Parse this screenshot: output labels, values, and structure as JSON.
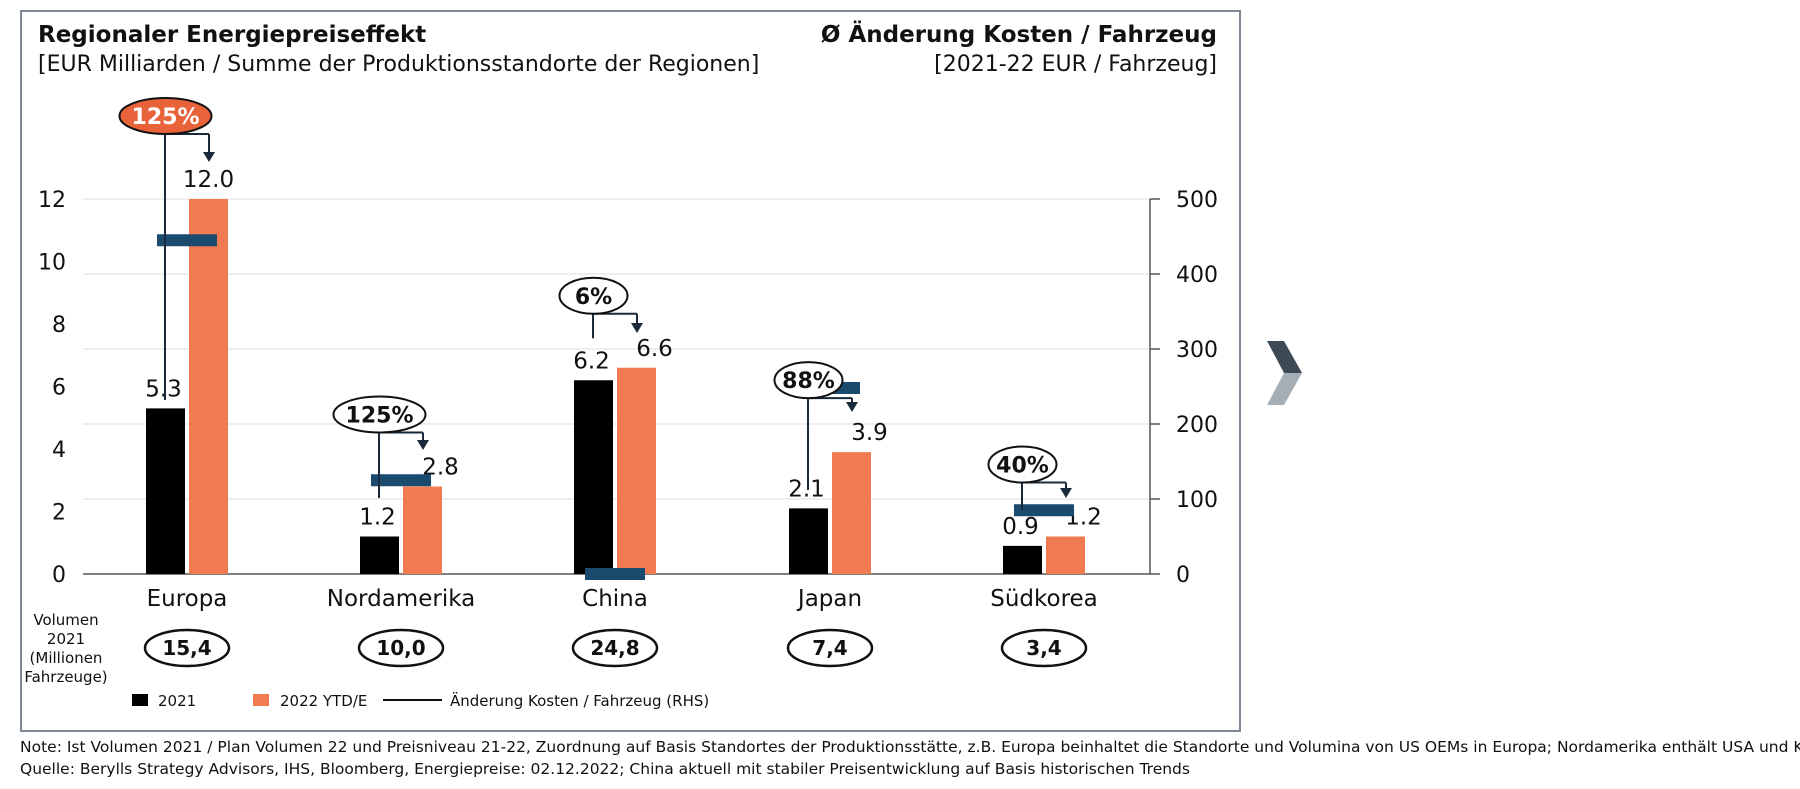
{
  "chart_data": {
    "type": "bar",
    "title": "Regionaler Energiepreiseffekt",
    "subtitle": "[EUR Milliarden / Summe der Produktionsstandorte der Regionen]",
    "right_title": "Ø Änderung Kosten / Fahrzeug",
    "right_subtitle": "[2021-22 EUR / Fahrzeug]",
    "categories": [
      "Europa",
      "Nordamerika",
      "China",
      "Japan",
      "Südkorea"
    ],
    "series": [
      {
        "name": "2021",
        "values": [
          5.3,
          1.2,
          6.2,
          2.1,
          0.9
        ],
        "color": "#000000"
      },
      {
        "name": "2022 YTD/E",
        "values": [
          12.0,
          2.8,
          6.6,
          3.9,
          1.2
        ],
        "color": "#f07b50"
      }
    ],
    "value_labels_2021": [
      "5.3",
      "1.2",
      "6.2",
      "2.1",
      "0.9"
    ],
    "value_labels_2022": [
      "12.0",
      "2.8",
      "6.6",
      "3.9",
      "1.2"
    ],
    "rhs_series": {
      "name": "Änderung Kosten / Fahrzeug (RHS)",
      "values": [
        445,
        125,
        0,
        248,
        85
      ],
      "color": "#1a4a6e"
    },
    "growth_labels": [
      "125%",
      "125%",
      "6%",
      "88%",
      "40%"
    ],
    "growth_highlight": [
      true,
      false,
      false,
      false,
      false
    ],
    "ylim": [
      0,
      12
    ],
    "yticks": [
      "0",
      "2",
      "4",
      "6",
      "8",
      "10",
      "12"
    ],
    "y2lim": [
      0,
      500
    ],
    "y2ticks": [
      "0",
      "100",
      "200",
      "300",
      "400",
      "500"
    ],
    "volume_label": [
      "Volumen",
      "2021",
      "(Millionen",
      "Fahrzeuge)"
    ],
    "volumes": [
      "15,4",
      "10,0",
      "24,8",
      "7,4",
      "3,4"
    ],
    "legend": {
      "placement": "bottom-left",
      "items": [
        "2021",
        "2022 YTD/E",
        "Änderung Kosten / Fahrzeug (RHS)"
      ]
    },
    "grid": true,
    "colors": {
      "black": "#000000",
      "orange": "#f07b50",
      "navy": "#1a4a6e",
      "frame": "#7d8a96",
      "accent": "#e8633a"
    }
  },
  "notes": {
    "line1": "Note: Ist Volumen 2021 / Plan Volumen 22 und Preisniveau 21-22, Zuordnung auf Basis Standortes der Produktionsstätte, z.B. Europa beinhaltet die Standorte und Volumina von US OEMs in Europa; Nordamerika enthält USA und Kanada",
    "line2": "Quelle: Berylls Strategy Advisors, IHS, Bloomberg, Energiepreise: 02.12.2022; China aktuell mit stabiler Preisentwicklung auf Basis historischen Trends"
  },
  "nav": {
    "next_icon": "chevron-right-icon"
  }
}
